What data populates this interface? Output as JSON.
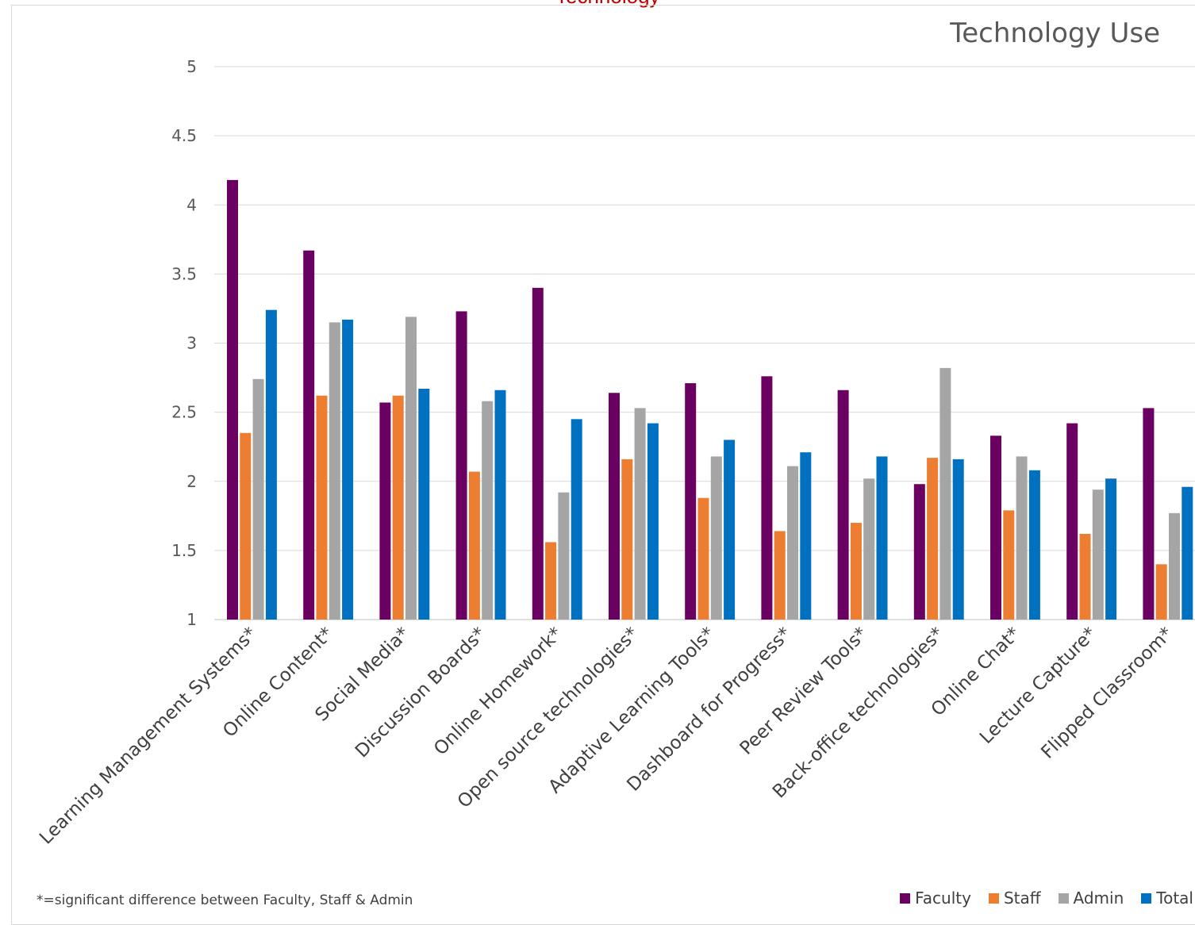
{
  "chart_data": {
    "type": "bar",
    "top_title": "Technology",
    "title": "Technology Use",
    "xlabel": "",
    "ylabel": "",
    "ylim": [
      1,
      5
    ],
    "yticks": [
      "1",
      "1.5",
      "2",
      "2.5",
      "3",
      "3.5",
      "4",
      "4.5",
      "5"
    ],
    "ytick_values": [
      1,
      1.5,
      2,
      2.5,
      3,
      3.5,
      4,
      4.5,
      5
    ],
    "grid": true,
    "legend_position": "bottom-right",
    "categories": [
      "Learning Management Systems*",
      "Online Content*",
      "Social Media*",
      "Discussion Boards*",
      "Online Homework*",
      "Open source technologies*",
      "Adaptive Learning Tools*",
      "Dashboard for Progress*",
      "Peer Review Tools*",
      "Back-office technologies*",
      "Online Chat*",
      "Lecture Capture*",
      "Flipped Classroom*"
    ],
    "series": [
      {
        "name": "Faculty",
        "color": "#6b0063",
        "values": [
          4.18,
          3.67,
          2.57,
          3.23,
          3.4,
          2.64,
          2.71,
          2.76,
          2.66,
          1.98,
          2.33,
          2.42,
          2.53
        ]
      },
      {
        "name": "Staff",
        "color": "#ed7d31",
        "values": [
          2.35,
          2.62,
          2.62,
          2.07,
          1.56,
          2.16,
          1.88,
          1.64,
          1.7,
          2.17,
          1.79,
          1.62,
          1.4
        ]
      },
      {
        "name": "Admin",
        "color": "#a5a5a5",
        "values": [
          2.74,
          3.15,
          3.19,
          2.58,
          1.92,
          2.53,
          2.18,
          2.11,
          2.02,
          2.82,
          2.18,
          1.94,
          1.77
        ]
      },
      {
        "name": "Total",
        "color": "#0070c0",
        "values": [
          3.24,
          3.17,
          2.67,
          2.66,
          2.45,
          2.42,
          2.3,
          2.21,
          2.18,
          2.16,
          2.08,
          2.02,
          1.96
        ]
      }
    ],
    "footnote": "*=significant difference between Faculty, Staff & Admin"
  }
}
